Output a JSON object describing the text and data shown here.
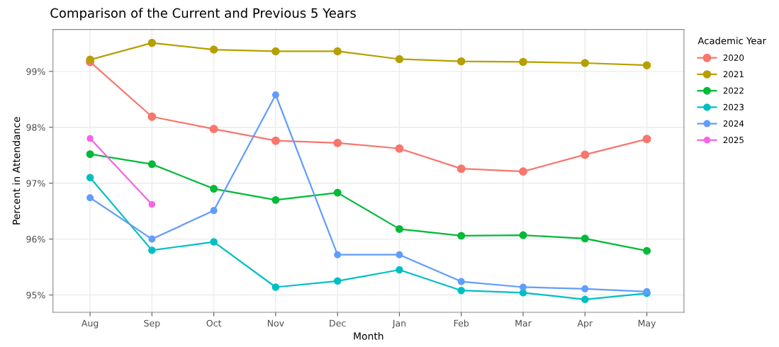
{
  "chart_data": {
    "type": "line",
    "title": "Comparison of the Current and Previous 5 Years",
    "xlabel": "Month",
    "ylabel": "Percent in Attendance",
    "legend_title": "Academic Year",
    "categories": [
      "Aug",
      "Sep",
      "Oct",
      "Nov",
      "Dec",
      "Jan",
      "Feb",
      "Mar",
      "Apr",
      "May"
    ],
    "series": [
      {
        "name": "2020",
        "color": "#f8766d",
        "values": [
          99.17,
          98.19,
          97.97,
          97.76,
          97.72,
          97.62,
          97.26,
          97.21,
          97.51,
          97.79
        ]
      },
      {
        "name": "2021",
        "color": "#b79f00",
        "values": [
          99.21,
          99.51,
          99.39,
          99.36,
          99.36,
          99.22,
          99.18,
          99.17,
          99.15,
          99.11
        ]
      },
      {
        "name": "2022",
        "color": "#00ba38",
        "values": [
          97.52,
          97.34,
          96.9,
          96.7,
          96.83,
          96.18,
          96.06,
          96.07,
          96.01,
          95.79
        ]
      },
      {
        "name": "2023",
        "color": "#00bfc4",
        "values": [
          97.1,
          95.8,
          95.95,
          95.14,
          95.25,
          95.45,
          95.08,
          95.04,
          94.92,
          95.03
        ]
      },
      {
        "name": "2024",
        "color": "#619cff",
        "values": [
          96.74,
          96.0,
          96.51,
          98.58,
          95.72,
          95.72,
          95.24,
          95.14,
          95.11,
          95.06
        ]
      },
      {
        "name": "2025",
        "color": "#f564e3",
        "values": [
          97.8,
          96.62,
          null,
          null,
          null,
          null,
          null,
          null,
          null,
          null
        ]
      }
    ],
    "ylim": [
      94.69,
      99.75
    ],
    "yticks": [
      {
        "value": 95,
        "label": "95%"
      },
      {
        "value": 96,
        "label": "96%"
      },
      {
        "value": 97,
        "label": "97%"
      },
      {
        "value": 98,
        "label": "98%"
      },
      {
        "value": 99,
        "label": "99%"
      }
    ],
    "grid": true,
    "legend": "right",
    "marker": "circle",
    "line_style": "solid"
  }
}
